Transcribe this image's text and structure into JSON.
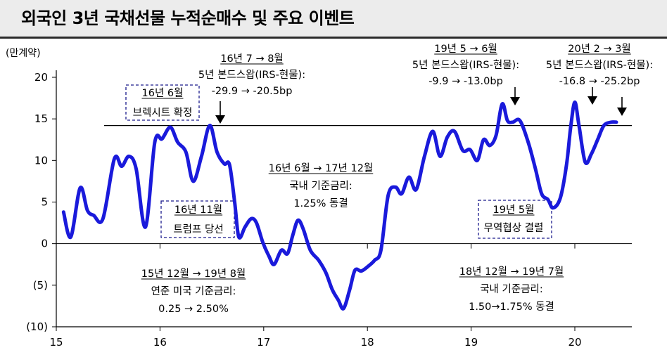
{
  "title": "외국인 3년 국채선물 누적순매수 및 주요 이벤트",
  "chart_data": {
    "type": "line",
    "unit": "(만계약)",
    "yticks": [
      {
        "v": 20,
        "label": "20"
      },
      {
        "v": 15,
        "label": "15"
      },
      {
        "v": 10,
        "label": "10"
      },
      {
        "v": 5,
        "label": "5"
      },
      {
        "v": 0,
        "label": "0"
      },
      {
        "v": -5,
        "label": "(5)"
      },
      {
        "v": -10,
        "label": "(10)"
      }
    ],
    "xticks": [
      {
        "v": 15,
        "label": "15"
      },
      {
        "v": 16,
        "label": "16"
      },
      {
        "v": 17,
        "label": "17"
      },
      {
        "v": 18,
        "label": "18"
      },
      {
        "v": 19,
        "label": "19"
      },
      {
        "v": 20,
        "label": "20"
      }
    ],
    "xlim": [
      15,
      20.83
    ],
    "ylim": [
      -10,
      20
    ],
    "reference_line": 14.2,
    "series": [
      {
        "color": "#1a1adb",
        "points": [
          [
            15.07,
            3.8
          ],
          [
            15.14,
            0.8
          ],
          [
            15.23,
            6.7
          ],
          [
            15.3,
            4.0
          ],
          [
            15.36,
            3.4
          ],
          [
            15.45,
            3.0
          ],
          [
            15.56,
            10.2
          ],
          [
            15.63,
            9.3
          ],
          [
            15.7,
            10.5
          ],
          [
            15.77,
            9.0
          ],
          [
            15.86,
            2.0
          ],
          [
            15.95,
            12.2
          ],
          [
            16.02,
            12.6
          ],
          [
            16.1,
            14.0
          ],
          [
            16.17,
            12.2
          ],
          [
            16.25,
            11.0
          ],
          [
            16.32,
            7.5
          ],
          [
            16.4,
            10.5
          ],
          [
            16.48,
            14.2
          ],
          [
            16.55,
            11.0
          ],
          [
            16.62,
            9.6
          ],
          [
            16.67,
            9.5
          ],
          [
            16.72,
            5.0
          ],
          [
            16.76,
            0.8
          ],
          [
            16.82,
            2.0
          ],
          [
            16.88,
            3.0
          ],
          [
            16.93,
            2.5
          ],
          [
            16.99,
            0.2
          ],
          [
            17.05,
            -1.5
          ],
          [
            17.1,
            -2.5
          ],
          [
            17.17,
            -0.8
          ],
          [
            17.23,
            -1.2
          ],
          [
            17.28,
            1.0
          ],
          [
            17.33,
            2.8
          ],
          [
            17.38,
            1.8
          ],
          [
            17.45,
            -0.8
          ],
          [
            17.53,
            -2.0
          ],
          [
            17.6,
            -3.5
          ],
          [
            17.66,
            -5.5
          ],
          [
            17.72,
            -6.8
          ],
          [
            17.77,
            -7.8
          ],
          [
            17.83,
            -5.5
          ],
          [
            17.88,
            -3.2
          ],
          [
            17.94,
            -3.3
          ],
          [
            18.0,
            -2.8
          ],
          [
            18.07,
            -2.0
          ],
          [
            18.13,
            -0.8
          ],
          [
            18.2,
            5.8
          ],
          [
            18.27,
            6.8
          ],
          [
            18.33,
            6.0
          ],
          [
            18.4,
            8.0
          ],
          [
            18.47,
            6.5
          ],
          [
            18.55,
            10.5
          ],
          [
            18.63,
            13.5
          ],
          [
            18.7,
            10.5
          ],
          [
            18.77,
            12.8
          ],
          [
            18.84,
            13.5
          ],
          [
            18.92,
            11.2
          ],
          [
            18.99,
            11.3
          ],
          [
            19.06,
            10.0
          ],
          [
            19.12,
            12.5
          ],
          [
            19.18,
            11.8
          ],
          [
            19.24,
            13.0
          ],
          [
            19.3,
            16.8
          ],
          [
            19.35,
            14.8
          ],
          [
            19.4,
            14.6
          ],
          [
            19.47,
            14.8
          ],
          [
            19.55,
            12.2
          ],
          [
            19.62,
            9.0
          ],
          [
            19.68,
            6.0
          ],
          [
            19.74,
            5.3
          ],
          [
            19.79,
            4.3
          ],
          [
            19.86,
            5.5
          ],
          [
            19.92,
            9.5
          ],
          [
            19.96,
            14.0
          ],
          [
            20.0,
            17.0
          ],
          [
            20.04,
            14.2
          ],
          [
            20.1,
            9.8
          ],
          [
            20.16,
            10.8
          ],
          [
            20.22,
            12.5
          ],
          [
            20.28,
            14.2
          ],
          [
            20.35,
            14.6
          ],
          [
            20.4,
            14.6
          ]
        ]
      }
    ],
    "annotations": [
      {
        "id": "a1",
        "lines": [
          "16년 7 → 8월",
          "5년 본드스왑(IRS-현물):",
          "-29.9 → -20.5bp"
        ],
        "boxed": false
      },
      {
        "id": "a2",
        "lines": [
          "16년 6월",
          "브렉시트 확정"
        ],
        "boxed": true
      },
      {
        "id": "a3",
        "lines": [
          "16년 11월",
          "트럼프 당선"
        ],
        "boxed": true
      },
      {
        "id": "a4",
        "lines": [
          "16년 6월 → 17년 12월",
          "국내 기준금리:",
          "1.25% 동결"
        ],
        "boxed": false
      },
      {
        "id": "a5",
        "lines": [
          "15년 12월 → 19년 8월",
          "연준 미국 기준금리:",
          "0.25 → 2.50%"
        ],
        "boxed": false
      },
      {
        "id": "a6",
        "lines": [
          "19년 5 → 6월",
          "5년 본드스왑(IRS-현물):",
          "-9.9 → -13.0bp"
        ],
        "boxed": false
      },
      {
        "id": "a7",
        "lines": [
          "20년 2 → 3월",
          "5년 본드스왑(IRS-현물):",
          "-16.8 → -25.2bp"
        ],
        "boxed": false
      },
      {
        "id": "a8",
        "lines": [
          "19년 5월",
          "무역협상 결렬"
        ],
        "boxed": true
      },
      {
        "id": "a9",
        "lines": [
          "18년 12월 → 19년 7월",
          "국내 기준금리:",
          "1.50→1.75% 동결"
        ],
        "boxed": false
      }
    ]
  }
}
